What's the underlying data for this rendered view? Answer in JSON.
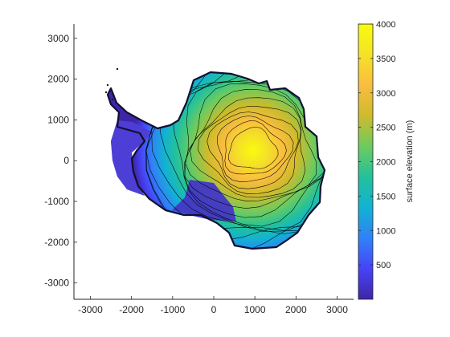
{
  "chart_data": {
    "type": "heatmap",
    "title": "",
    "xlabel": "",
    "ylabel": "",
    "xlim": [
      -3400,
      3400
    ],
    "ylim": [
      -3400,
      3350
    ],
    "xticks": [
      -3000,
      -2000,
      -1000,
      0,
      1000,
      2000,
      3000
    ],
    "yticks": [
      3000,
      2000,
      1000,
      0,
      -1000,
      -2000,
      -3000
    ],
    "colorbar": {
      "label": "surface elevation (m)",
      "range": [
        0,
        4000
      ],
      "ticks": [
        4000,
        3500,
        3000,
        2500,
        2000,
        1500,
        1000,
        500
      ],
      "colormap": [
        "#3e26a8",
        "#4743f8",
        "#2f82f7",
        "#12b2d3",
        "#23c19b",
        "#6ccb5f",
        "#cdbb2c",
        "#f9bd3f",
        "#f5e226",
        "#f9fb0e"
      ]
    },
    "contours": {
      "color": "#000000",
      "interval_m": 250,
      "levels": [
        250,
        500,
        750,
        1000,
        1250,
        1500,
        1750,
        2000,
        2250,
        2500,
        2750,
        3000,
        3250,
        3500,
        3750
      ]
    },
    "summit": {
      "x": 950,
      "y": 250,
      "elevation": 4000
    },
    "grid": false
  }
}
